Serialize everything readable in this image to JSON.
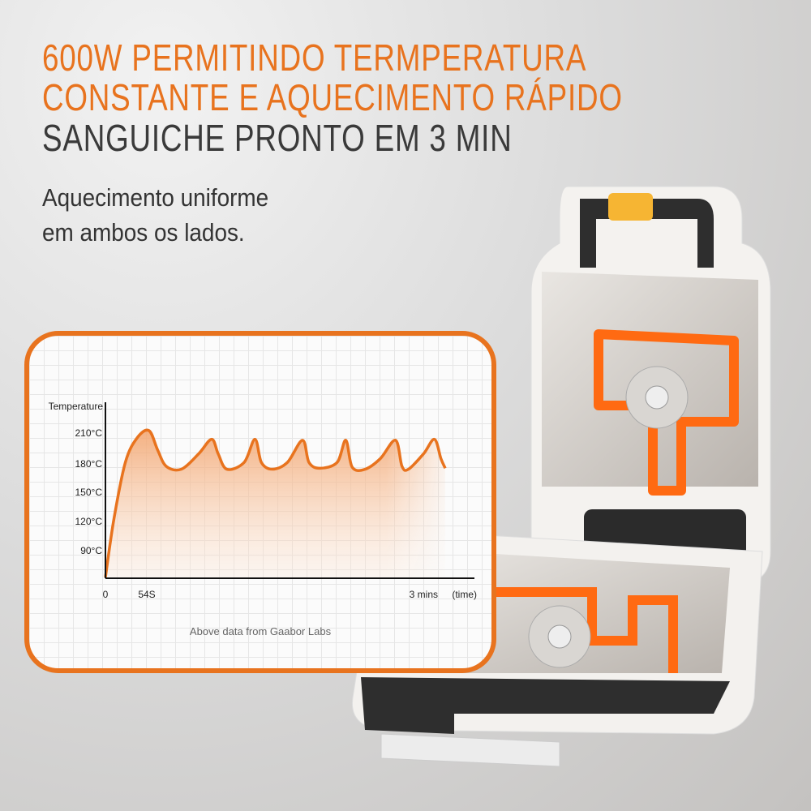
{
  "headline": {
    "line1": "600W PERMITINDO TERMPERATURA",
    "line2": "CONSTANTE E AQUECIMENTO RÁPIDO",
    "line3": "SANGUICHE PRONTO EM 3 MIN"
  },
  "subtitle": {
    "line1": "Aquecimento uniforme",
    "line2": "em ambos os lados."
  },
  "colors": {
    "accent": "#e8731e",
    "text_dark": "#3a3a3a"
  },
  "chart_data": {
    "type": "area",
    "ylabel": "Temperature",
    "xlabel": "(time)",
    "y_ticks": [
      "90°C",
      "120°C",
      "150°C",
      "180°C",
      "210°C"
    ],
    "x_ticks": [
      "0",
      "54S",
      "3 mins"
    ],
    "grid": true,
    "note": "Above data from Gaabor Labs",
    "x_unit": "seconds",
    "y_unit": "°C",
    "points": [
      [
        0,
        61
      ],
      [
        11,
        121
      ],
      [
        26,
        180
      ],
      [
        41,
        205
      ],
      [
        55,
        213
      ],
      [
        59,
        193
      ],
      [
        63,
        176
      ],
      [
        70,
        173
      ],
      [
        78,
        189
      ],
      [
        84,
        204
      ],
      [
        87,
        189
      ],
      [
        91,
        173
      ],
      [
        99,
        180
      ],
      [
        104,
        204
      ],
      [
        107,
        180
      ],
      [
        112,
        173
      ],
      [
        119,
        180
      ],
      [
        126,
        203
      ],
      [
        129,
        180
      ],
      [
        134,
        174
      ],
      [
        142,
        180
      ],
      [
        146,
        203
      ],
      [
        149,
        175
      ],
      [
        155,
        173
      ],
      [
        162,
        184
      ],
      [
        169,
        203
      ],
      [
        172,
        176
      ],
      [
        175,
        173
      ],
      [
        182,
        189
      ],
      [
        187,
        204
      ],
      [
        190,
        184
      ],
      [
        192,
        174
      ]
    ]
  }
}
